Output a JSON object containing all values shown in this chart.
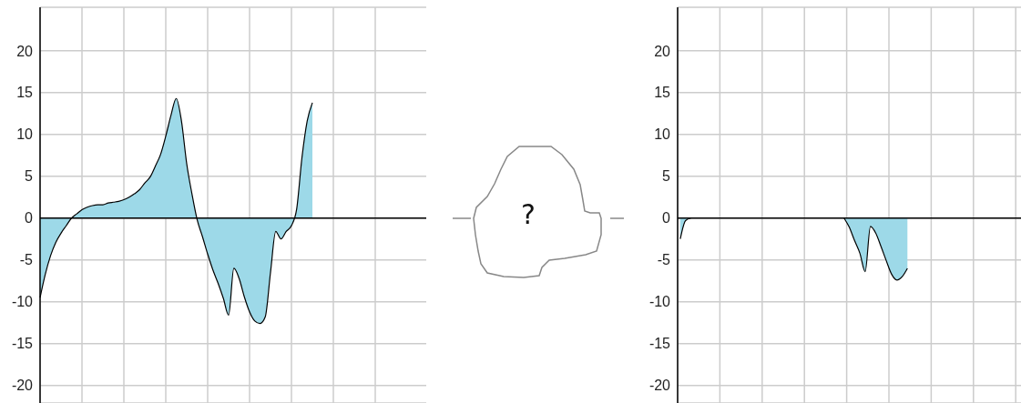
{
  "chart_data": [
    {
      "type": "area",
      "categories": [
        null,
        null,
        null,
        null,
        null,
        null,
        null,
        null,
        null,
        null,
        null,
        null,
        null,
        null,
        null,
        null,
        null,
        null,
        null,
        null,
        null,
        null,
        null,
        null,
        null,
        null,
        null,
        null,
        null,
        null,
        null,
        null,
        null,
        null,
        null,
        null,
        null,
        null,
        null,
        null,
        null,
        null,
        null,
        null,
        null,
        null,
        null,
        null,
        null,
        null,
        null,
        null,
        null
      ],
      "series": [
        {
          "color": "#9dd9e8",
          "values": [
            -9.5,
            -6.7,
            -4.5,
            -2.9,
            -1.8,
            -0.9,
            0,
            0.5,
            1.0,
            1.3,
            1.5,
            1.6,
            1.6,
            1.8,
            1.9,
            2.0,
            2.2,
            2.5,
            2.9,
            3.4,
            4.2,
            4.9,
            6.2,
            7.6,
            9.8,
            12.3,
            14.3,
            11.6,
            6.5,
            2.9,
            -0.2,
            -2.2,
            -4.3,
            -6.2,
            -7.8,
            -9.6,
            -11.6,
            -6.0,
            -7.2,
            -9.4,
            -11.2,
            -12.3,
            -12.6,
            -11.8,
            -6.5,
            -1.6,
            -2.5,
            -1.6,
            -0.9,
            1.1,
            7.2,
            11.6,
            13.8
          ]
        }
      ],
      "ylim": [
        -22.1,
        25.2
      ],
      "yticks": [
        -20,
        -15,
        -10,
        -5,
        0,
        5,
        10,
        15,
        20
      ],
      "grid": true,
      "tick_labels": "y",
      "annotations": [
        "?"
      ]
    },
    {
      "type": "area",
      "categories": [
        null,
        null,
        null,
        null,
        null,
        null,
        null,
        null,
        null,
        null,
        null,
        null,
        null,
        null,
        null,
        null,
        null,
        null,
        null,
        null,
        null,
        null,
        null,
        null,
        null,
        null,
        null,
        null,
        null,
        null,
        null,
        null,
        null,
        null,
        null,
        null,
        null,
        null,
        null,
        null,
        null,
        null,
        null,
        null,
        null,
        null,
        null,
        null,
        null,
        null,
        null,
        null,
        null,
        null,
        null,
        null,
        null,
        null,
        null,
        null,
        null,
        null,
        null,
        null,
        null
      ],
      "series": [
        {
          "color": "#9dd9e8",
          "values": [
            -2.5,
            -0.3,
            0,
            null,
            null,
            null,
            null,
            null,
            null,
            null,
            null,
            null,
            null,
            null,
            null,
            null,
            null,
            null,
            null,
            null,
            null,
            null,
            null,
            null,
            null,
            null,
            null,
            null,
            null,
            null,
            null,
            0,
            -1.1,
            -2.7,
            -4.2,
            -6.4,
            -1.0,
            -1.8,
            -3.4,
            -5.1,
            -6.7,
            -7.4,
            -7.0,
            -6.0,
            null,
            null,
            null,
            null,
            null,
            null,
            null,
            null,
            null,
            null,
            null,
            null,
            null,
            null,
            null,
            null,
            null,
            null,
            null,
            null,
            null
          ]
        }
      ],
      "ylim": [
        -22.1,
        25.2
      ],
      "yticks": [
        -20,
        -15,
        -10,
        -5,
        0,
        5,
        10,
        15,
        20
      ],
      "grid": true,
      "tick_labels": "y"
    }
  ]
}
